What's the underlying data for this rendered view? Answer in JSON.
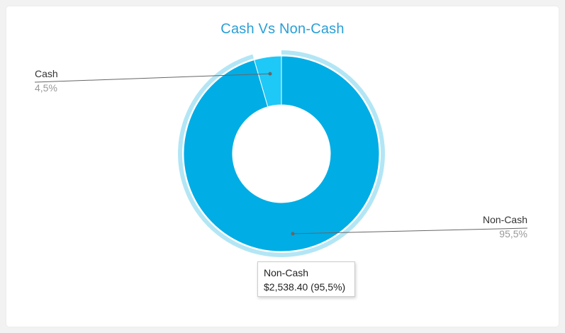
{
  "chart_data": {
    "type": "pie",
    "variant": "donut",
    "title": "Cash Vs Non-Cash",
    "slices": [
      {
        "name": "Cash",
        "percent": 4.5,
        "percent_label": "4,5%",
        "color": "#1ec8f7"
      },
      {
        "name": "Non-Cash",
        "percent": 95.5,
        "percent_label": "95,5%",
        "color": "#00ade5"
      }
    ],
    "highlight_color": "#b3e6f5",
    "hovered_slice": "Non-Cash"
  },
  "tooltip": {
    "title": "Non-Cash",
    "value": "$2,538.40 (95,5%)"
  },
  "colors": {
    "title": "#2a9fd6",
    "leader_line": "#666666"
  }
}
